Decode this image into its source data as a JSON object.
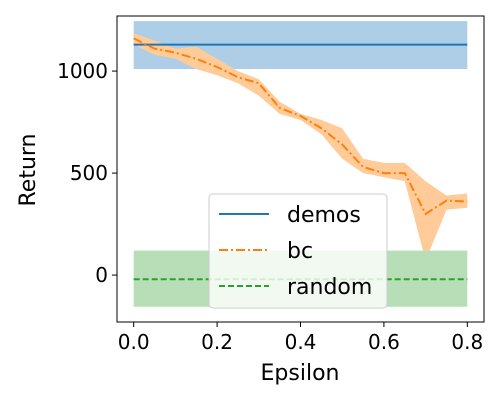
{
  "chart_data": {
    "type": "line",
    "title": "",
    "xlabel": "Epsilon",
    "ylabel": "Return",
    "xlim": [
      -0.04,
      0.84
    ],
    "ylim": [
      -230,
      1270
    ],
    "xticks": [
      0.0,
      0.2,
      0.4,
      0.6,
      0.8
    ],
    "xtick_labels": [
      "0.0",
      "0.2",
      "0.4",
      "0.6",
      "0.8"
    ],
    "yticks": [
      0,
      500,
      1000
    ],
    "ytick_labels": [
      "0",
      "500",
      "1000"
    ],
    "grid": false,
    "legend_position": "lower-center",
    "series": [
      {
        "name": "demos",
        "style": "solid",
        "color": "#1f77b4",
        "band_color": "#aecde6",
        "x": [
          0.0,
          0.8
        ],
        "y": [
          1130,
          1130
        ],
        "lower": [
          1010,
          1010
        ],
        "upper": [
          1245,
          1245
        ]
      },
      {
        "name": "bc",
        "style": "dashdot",
        "color": "#ff7f0e",
        "band_color": "#ffcc99",
        "x": [
          0.0,
          0.05,
          0.1,
          0.15,
          0.2,
          0.25,
          0.3,
          0.35,
          0.4,
          0.45,
          0.5,
          0.55,
          0.6,
          0.65,
          0.7,
          0.75,
          0.8
        ],
        "y": [
          1160,
          1110,
          1090,
          1060,
          1020,
          970,
          940,
          820,
          780,
          720,
          640,
          530,
          500,
          500,
          300,
          365,
          360
        ],
        "lower": [
          1130,
          1080,
          1060,
          1010,
          980,
          940,
          880,
          790,
          760,
          690,
          570,
          500,
          480,
          460,
          70,
          320,
          330
        ],
        "upper": [
          1185,
          1150,
          1110,
          1120,
          1060,
          1000,
          960,
          850,
          790,
          760,
          720,
          570,
          550,
          550,
          460,
          390,
          400
        ]
      },
      {
        "name": "random",
        "style": "dashed",
        "color": "#2ca02c",
        "band_color": "#b7deb7",
        "x": [
          0.0,
          0.8
        ],
        "y": [
          -20,
          -20
        ],
        "lower": [
          -155,
          -155
        ],
        "upper": [
          120,
          120
        ]
      }
    ]
  }
}
